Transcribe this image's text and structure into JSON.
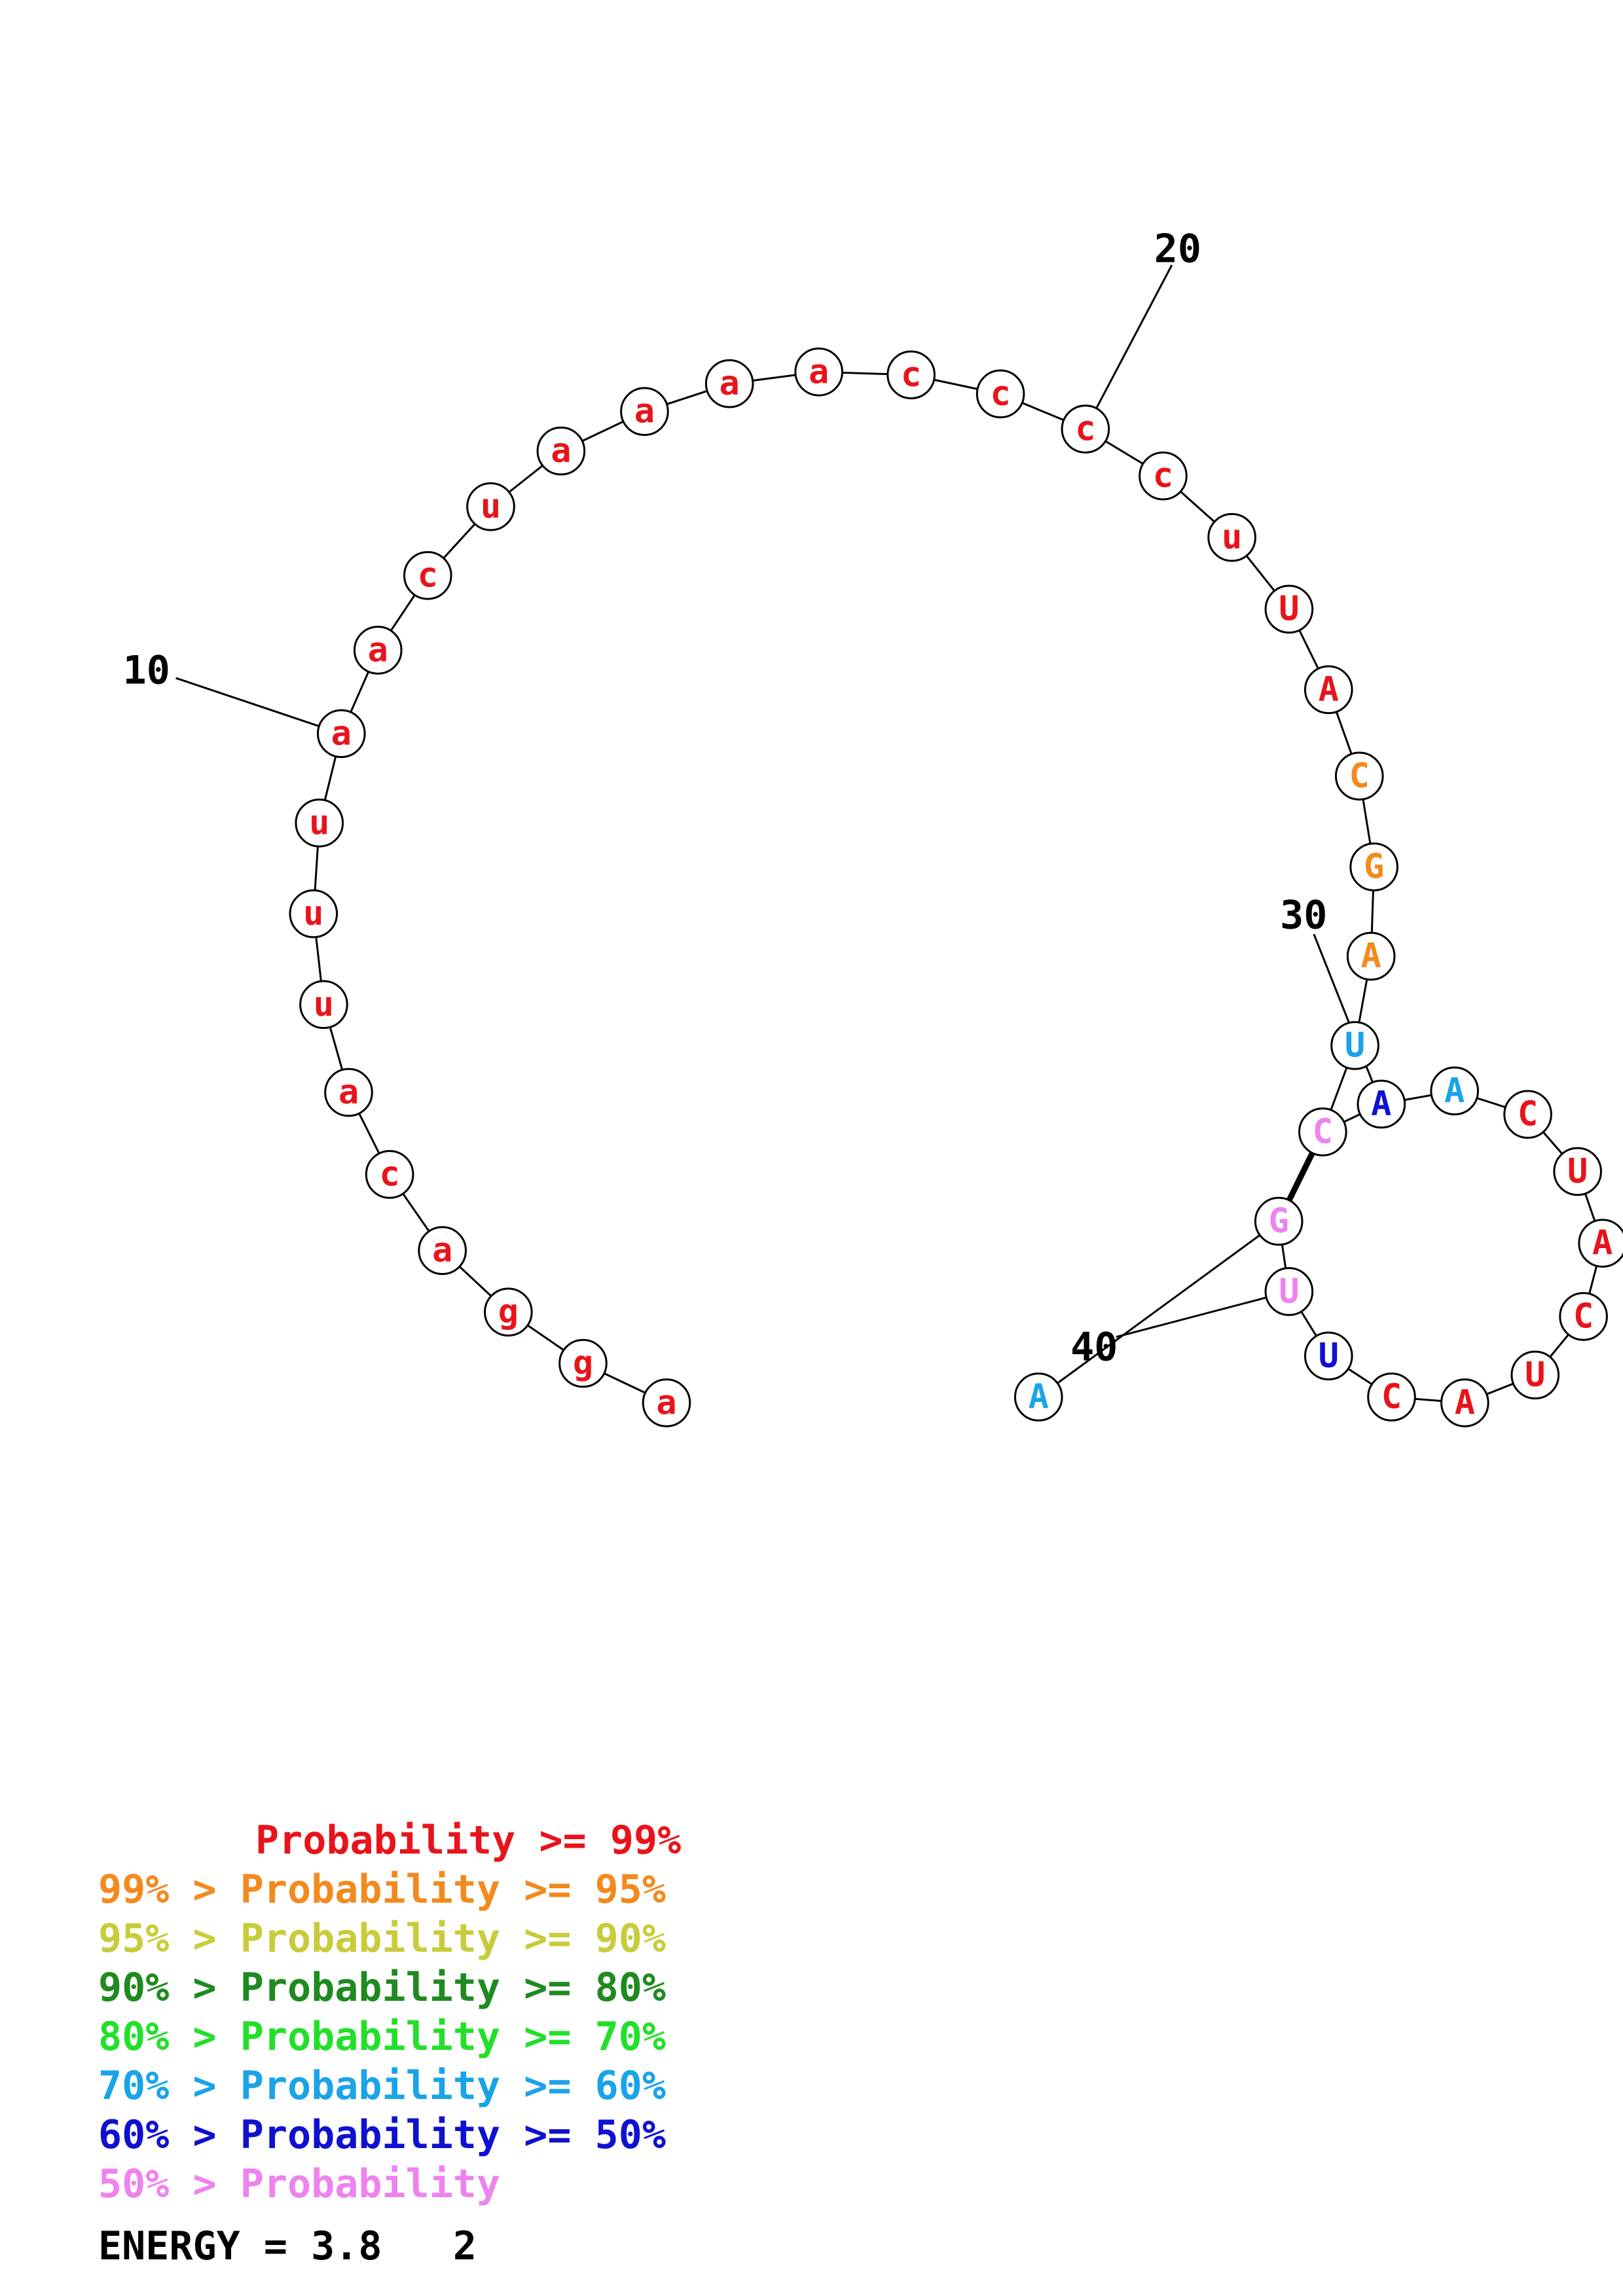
{
  "structure": {
    "nucleotides": [
      {
        "n": 1,
        "base": "a",
        "conf": "p99"
      },
      {
        "n": 2,
        "base": "g",
        "conf": "p99"
      },
      {
        "n": 3,
        "base": "g",
        "conf": "p99"
      },
      {
        "n": 4,
        "base": "a",
        "conf": "p99"
      },
      {
        "n": 5,
        "base": "c",
        "conf": "p99"
      },
      {
        "n": 6,
        "base": "a",
        "conf": "p99"
      },
      {
        "n": 7,
        "base": "u",
        "conf": "p99"
      },
      {
        "n": 8,
        "base": "u",
        "conf": "p99"
      },
      {
        "n": 9,
        "base": "u",
        "conf": "p99"
      },
      {
        "n": 10,
        "base": "a",
        "conf": "p99"
      },
      {
        "n": 11,
        "base": "a",
        "conf": "p99"
      },
      {
        "n": 12,
        "base": "c",
        "conf": "p99"
      },
      {
        "n": 13,
        "base": "u",
        "conf": "p99"
      },
      {
        "n": 14,
        "base": "a",
        "conf": "p99"
      },
      {
        "n": 15,
        "base": "a",
        "conf": "p99"
      },
      {
        "n": 16,
        "base": "a",
        "conf": "p99"
      },
      {
        "n": 17,
        "base": "a",
        "conf": "p99"
      },
      {
        "n": 18,
        "base": "c",
        "conf": "p99"
      },
      {
        "n": 19,
        "base": "c",
        "conf": "p99"
      },
      {
        "n": 20,
        "base": "c",
        "conf": "p99"
      },
      {
        "n": 21,
        "base": "c",
        "conf": "p99"
      },
      {
        "n": 22,
        "base": "u",
        "conf": "p99"
      },
      {
        "n": 23,
        "base": "U",
        "conf": "p99"
      },
      {
        "n": 24,
        "base": "A",
        "conf": "p99"
      },
      {
        "n": 25,
        "base": "C",
        "conf": "p95"
      },
      {
        "n": 26,
        "base": "G",
        "conf": "p95"
      },
      {
        "n": 27,
        "base": "A",
        "conf": "p95"
      },
      {
        "n": 28,
        "base": "U",
        "conf": "p60"
      },
      {
        "n": 29,
        "base": "C",
        "conf": "p0"
      },
      {
        "n": 30,
        "base": "A",
        "conf": "p50"
      },
      {
        "n": 31,
        "base": "A",
        "conf": "p60"
      },
      {
        "n": 32,
        "base": "C",
        "conf": "p99"
      },
      {
        "n": 33,
        "base": "U",
        "conf": "p99"
      },
      {
        "n": 34,
        "base": "A",
        "conf": "p99"
      },
      {
        "n": 35,
        "base": "C",
        "conf": "p99"
      },
      {
        "n": 36,
        "base": "U",
        "conf": "p99"
      },
      {
        "n": 37,
        "base": "A",
        "conf": "p99"
      },
      {
        "n": 38,
        "base": "C",
        "conf": "p99"
      },
      {
        "n": 39,
        "base": "U",
        "conf": "p50"
      },
      {
        "n": 40,
        "base": "U",
        "conf": "p0"
      },
      {
        "n": 41,
        "base": "G",
        "conf": "p0"
      },
      {
        "n": 42,
        "base": "A",
        "conf": "p60"
      }
    ],
    "pairs": [
      [
        29,
        41
      ]
    ],
    "tick_labels": [
      "10",
      "20",
      "30",
      "40"
    ]
  },
  "colors": {
    "p99": "#e8141b",
    "p95": "#f28a1e",
    "p90": "#c8cc3a",
    "p80": "#1f8a1f",
    "p70": "#22e02a",
    "p60": "#1aa3e8",
    "p50": "#1010d0",
    "p0": "#ee82ee",
    "outline": "#000000"
  },
  "legend": [
    {
      "prefix": "",
      "op1": "",
      "word": "Probability",
      "op2": ">=",
      "value": "99%",
      "conf": "p99"
    },
    {
      "prefix": "99%",
      "op1": ">",
      "word": "Probability",
      "op2": ">=",
      "value": "95%",
      "conf": "p95"
    },
    {
      "prefix": "95%",
      "op1": ">",
      "word": "Probability",
      "op2": ">=",
      "value": "90%",
      "conf": "p90"
    },
    {
      "prefix": "90%",
      "op1": ">",
      "word": "Probability",
      "op2": ">=",
      "value": "80%",
      "conf": "p80"
    },
    {
      "prefix": "80%",
      "op1": ">",
      "word": "Probability",
      "op2": ">=",
      "value": "70%",
      "conf": "p70"
    },
    {
      "prefix": "70%",
      "op1": ">",
      "word": "Probability",
      "op2": ">=",
      "value": "60%",
      "conf": "p60"
    },
    {
      "prefix": "60%",
      "op1": ">",
      "word": "Probability",
      "op2": ">=",
      "value": "50%",
      "conf": "p50"
    },
    {
      "prefix": "50%",
      "op1": ">",
      "word": "Probability",
      "op2": "",
      "value": "",
      "conf": "p0"
    }
  ],
  "energy": {
    "label": "ENERGY",
    "equals": "=",
    "value": "3.8",
    "id": "2"
  }
}
